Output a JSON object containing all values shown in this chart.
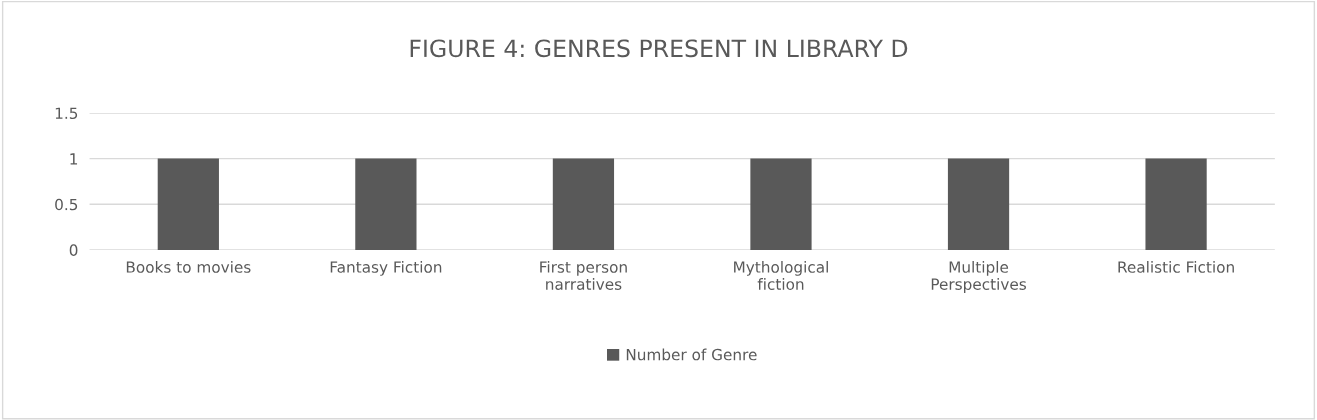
{
  "chart_data": {
    "type": "bar",
    "title": "FIGURE 4: GENRES PRESENT IN LIBRARY D",
    "categories": [
      "Books to movies",
      "Fantasy Fiction",
      "First person\nnarratives",
      "Mythological\nfiction",
      "Multiple\nPerspectives",
      "Realistic Fiction"
    ],
    "series": [
      {
        "name": "Number of Genre",
        "color": "#595959",
        "values": [
          1,
          1,
          1,
          1,
          1,
          1
        ]
      }
    ],
    "ylim": [
      0,
      1.5
    ],
    "yticks": [
      0,
      0.5,
      1,
      1.5
    ],
    "grid": "y",
    "legend": "bottom"
  }
}
